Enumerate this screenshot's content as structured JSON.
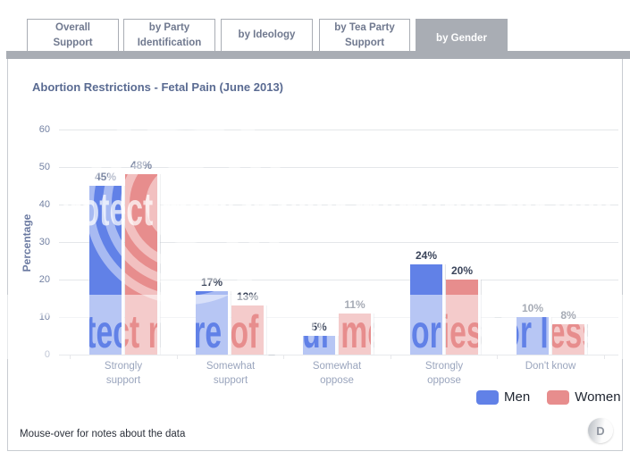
{
  "tabs": [
    {
      "label": "Overall Support",
      "active": false
    },
    {
      "label": "by Party Identification",
      "active": false
    },
    {
      "label": "by Ideology",
      "active": false
    },
    {
      "label": "by Tea Party Support",
      "active": false
    },
    {
      "label": "by Gender",
      "active": true
    }
  ],
  "chart_data": {
    "type": "bar",
    "title": "Abortion Restrictions - Fetal Pain (June 2013)",
    "xlabel": "",
    "ylabel": "Percentage",
    "ylim": [
      0,
      60
    ],
    "yticks": [
      0,
      10,
      20,
      30,
      40,
      50,
      60
    ],
    "grid": true,
    "legend_position": "bottom-right",
    "categories": [
      "Strongly support",
      "Somewhat support",
      "Somewhat oppose",
      "Strongly oppose",
      "Don't know"
    ],
    "category_lines": [
      [
        "Strongly",
        "support"
      ],
      [
        "Somewhat",
        "support"
      ],
      [
        "Somewhat",
        "oppose"
      ],
      [
        "Strongly",
        "oppose"
      ],
      [
        "Don't know"
      ]
    ],
    "series": [
      {
        "name": "Men",
        "color": "#6181e7",
        "values": [
          45,
          17,
          5,
          24,
          10
        ],
        "labels": [
          "45%",
          "17%",
          "5%",
          "24%",
          "10%"
        ],
        "label_muted": [
          true,
          false,
          false,
          false,
          false
        ]
      },
      {
        "name": "Women",
        "color": "#e78d8d",
        "values": [
          48,
          13,
          11,
          20,
          8
        ],
        "labels": [
          "48%",
          "13%",
          "11%",
          "20%",
          "8%"
        ],
        "label_muted": [
          true,
          false,
          false,
          false,
          false
        ]
      }
    ]
  },
  "watermark": {
    "text": "Protect more of your memories for less"
  },
  "footer": {
    "note": "Mouse-over for notes about the data",
    "badge": "D"
  },
  "colors": {
    "tab_gray": "#a9adb4",
    "title_text": "#5a6b92",
    "axis_text": "#7482a3",
    "category_text": "#9aa5bd",
    "label_dark": "#3b455b",
    "label_muted": "#7e89a4",
    "gridline": "#e4e7ea"
  }
}
